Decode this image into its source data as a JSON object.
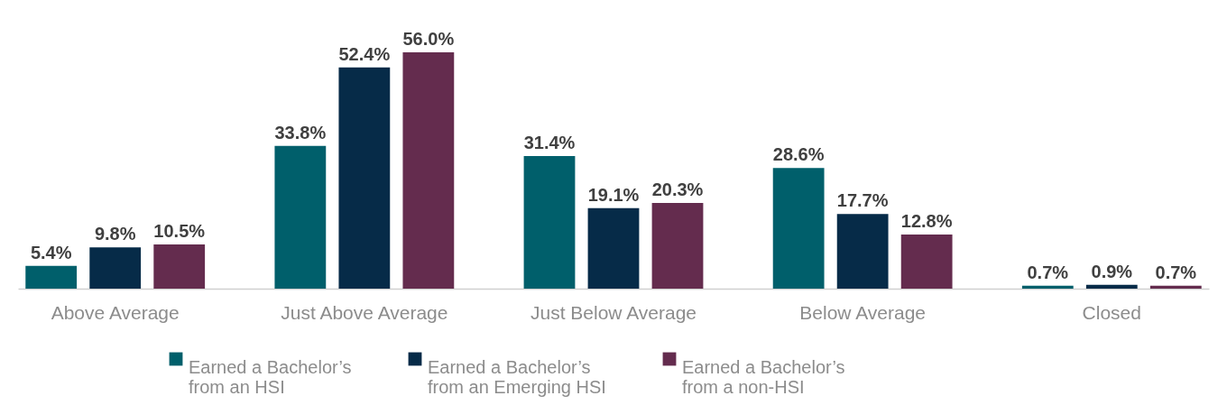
{
  "chart_data": {
    "type": "bar",
    "categories": [
      "Above Average",
      "Just Above Average",
      "Just Below Average",
      "Below Average",
      "Closed"
    ],
    "series": [
      {
        "name": "Earned a Bachelor’s from an HSI",
        "color": "#005f6b",
        "values": [
          5.4,
          33.8,
          31.4,
          28.6,
          0.7
        ],
        "value_labels": [
          "5.4%",
          "33.8%",
          "31.4%",
          "28.6%",
          "0.7%"
        ]
      },
      {
        "name": "Earned a Bachelor’s from an Emerging HSI",
        "color": "#062b48",
        "values": [
          9.8,
          52.4,
          19.1,
          17.7,
          0.9
        ],
        "value_labels": [
          "9.8%",
          "52.4%",
          "19.1%",
          "17.7%",
          "0.9%"
        ]
      },
      {
        "name": "Earned a Bachelor’s from a non-HSI",
        "color": "#642c4e",
        "values": [
          10.5,
          56.0,
          20.3,
          12.8,
          0.7
        ],
        "value_labels": [
          "10.5%",
          "56.0%",
          "20.3%",
          "12.8%",
          "0.7%"
        ]
      }
    ],
    "tick_labels": "x",
    "grid": false,
    "legend": "bottom"
  }
}
